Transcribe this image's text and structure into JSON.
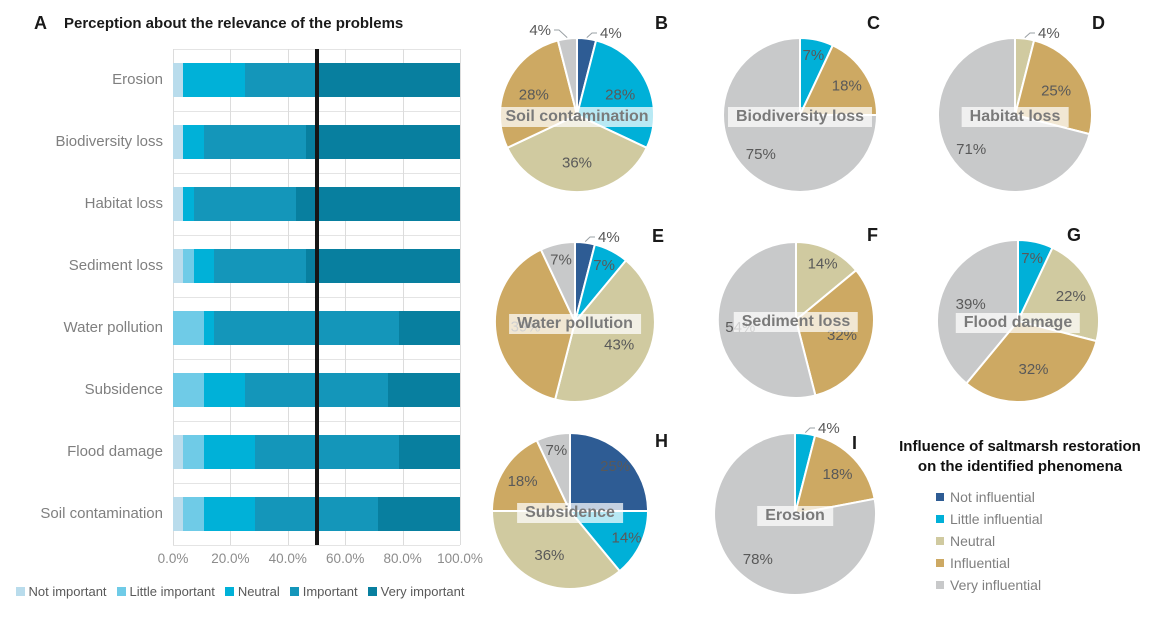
{
  "chart_data": [
    {
      "type": "bar",
      "orientation": "horizontal_stacked",
      "panel_letter": "A",
      "title": "Perception about the relevance of the problems",
      "categories": [
        "Erosion",
        "Biodiversity loss",
        "Habitat loss",
        "Sediment loss",
        "Water pollution",
        "Subsidence",
        "Flood damage",
        "Soil contamination"
      ],
      "series": [
        {
          "name": "Not important",
          "color": "#b9dcec",
          "values": [
            3.6,
            3.6,
            3.6,
            3.6,
            0,
            0,
            3.6,
            3.6
          ]
        },
        {
          "name": "Little important",
          "color": "#6fcbe7",
          "values": [
            0,
            0,
            0,
            3.6,
            10.7,
            10.7,
            7.1,
            7.1
          ]
        },
        {
          "name": "Neutral",
          "color": "#00b1d8",
          "values": [
            21.4,
            7.1,
            3.6,
            7.1,
            3.6,
            14.3,
            17.9,
            17.9
          ]
        },
        {
          "name": "Important",
          "color": "#1496ba",
          "values": [
            25.0,
            35.7,
            35.7,
            32.1,
            64.3,
            50.0,
            50.0,
            42.9
          ]
        },
        {
          "name": "Very important",
          "color": "#087f9f",
          "values": [
            50.0,
            53.6,
            57.1,
            53.6,
            21.4,
            25.0,
            21.4,
            28.6
          ]
        }
      ],
      "x_ticks": [
        "0.0%",
        "20.0%",
        "40.0%",
        "60.0%",
        "80.0%",
        "100.0%"
      ],
      "xlim": [
        0,
        100
      ],
      "reference_line_pct": 50,
      "grid": true,
      "legend_position": "bottom"
    },
    {
      "type": "pie",
      "group_title_line1": "Influence of saltmarsh restoration",
      "group_title_line2": "on the identified phenomena",
      "legend_position": "bottom-right",
      "legend": [
        {
          "label": "Not influential",
          "color": "#2e5c94"
        },
        {
          "label": "Little influential",
          "color": "#00b0d8"
        },
        {
          "label": "Neutral",
          "color": "#d0caa0"
        },
        {
          "label": "Influential",
          "color": "#cda963"
        },
        {
          "label": "Very influential",
          "color": "#c8c9ca"
        }
      ],
      "pies": [
        {
          "panel_letter": "B",
          "label": "Soil contamination",
          "slices": [
            {
              "name": "Not influential",
              "pct": 4,
              "text": "4%",
              "outside": "right"
            },
            {
              "name": "Little influential",
              "pct": 28,
              "text": "28%"
            },
            {
              "name": "Neutral",
              "pct": 36,
              "text": "36%"
            },
            {
              "name": "Influential",
              "pct": 28,
              "text": "28%"
            },
            {
              "name": "Very influential",
              "pct": 4,
              "text": "4%",
              "outside": "left"
            }
          ]
        },
        {
          "panel_letter": "C",
          "label": "Biodiversity loss",
          "slices": [
            {
              "name": "Little influential",
              "pct": 7,
              "text": "7%"
            },
            {
              "name": "Influential",
              "pct": 18,
              "text": "18%"
            },
            {
              "name": "Very influential",
              "pct": 75,
              "text": "75%"
            }
          ]
        },
        {
          "panel_letter": "D",
          "label": "Habitat loss",
          "slices": [
            {
              "name": "Neutral",
              "pct": 4,
              "text": "4%",
              "outside": "right"
            },
            {
              "name": "Influential",
              "pct": 25,
              "text": "25%"
            },
            {
              "name": "Very influential",
              "pct": 71,
              "text": "71%"
            }
          ]
        },
        {
          "panel_letter": "E",
          "label": "Water pollution",
          "slices": [
            {
              "name": "Not influential",
              "pct": 4,
              "text": "4%",
              "outside": "right"
            },
            {
              "name": "Little influential",
              "pct": 7,
              "text": "7%"
            },
            {
              "name": "Neutral",
              "pct": 43,
              "text": "43%"
            },
            {
              "name": "Influential",
              "pct": 39,
              "text": "39%"
            },
            {
              "name": "Very influential",
              "pct": 7,
              "text": "7%"
            }
          ]
        },
        {
          "panel_letter": "F",
          "label": "Sediment loss",
          "slices": [
            {
              "name": "Neutral",
              "pct": 14,
              "text": "14%"
            },
            {
              "name": "Influential",
              "pct": 32,
              "text": "32%"
            },
            {
              "name": "Very influential",
              "pct": 54,
              "text": "54%"
            }
          ]
        },
        {
          "panel_letter": "G",
          "label": "Flood damage",
          "slices": [
            {
              "name": "Little influential",
              "pct": 7,
              "text": "7%"
            },
            {
              "name": "Neutral",
              "pct": 22,
              "text": "22%"
            },
            {
              "name": "Influential",
              "pct": 32,
              "text": "32%"
            },
            {
              "name": "Very influential",
              "pct": 39,
              "text": "39%"
            }
          ]
        },
        {
          "panel_letter": "H",
          "label": "Subsidence",
          "slices": [
            {
              "name": "Not influential",
              "pct": 25,
              "text": "25%",
              "text_color": "#ffffff"
            },
            {
              "name": "Little influential",
              "pct": 14,
              "text": "14%"
            },
            {
              "name": "Neutral",
              "pct": 36,
              "text": "36%"
            },
            {
              "name": "Influential",
              "pct": 18,
              "text": "18%"
            },
            {
              "name": "Very influential",
              "pct": 7,
              "text": "7%"
            }
          ]
        },
        {
          "panel_letter": "I",
          "label": "Erosion",
          "slices": [
            {
              "name": "Little influential",
              "pct": 4,
              "text": "4%",
              "outside": "right"
            },
            {
              "name": "Influential",
              "pct": 18,
              "text": "18%"
            },
            {
              "name": "Very influential",
              "pct": 78,
              "text": "78%"
            }
          ]
        }
      ]
    }
  ]
}
